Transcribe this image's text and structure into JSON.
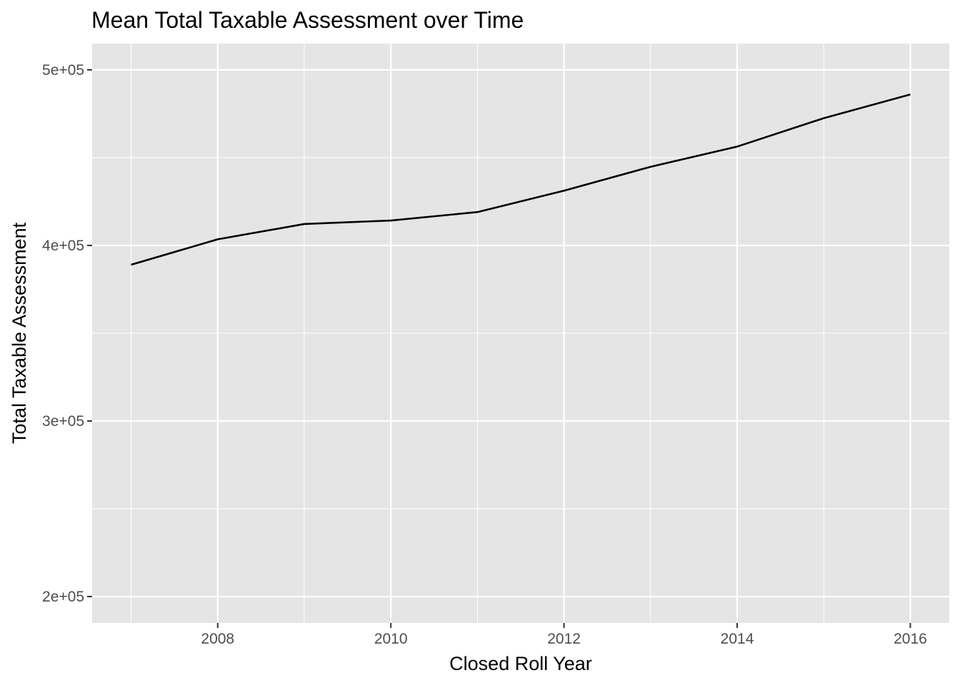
{
  "chart_data": {
    "type": "line",
    "title": "Mean Total Taxable Assessment over Time",
    "xlabel": "Closed Roll Year",
    "ylabel": "Total Taxable Assessment",
    "x": [
      2007,
      2008,
      2009,
      2010,
      2011,
      2012,
      2013,
      2014,
      2015,
      2016
    ],
    "series": [
      {
        "values": [
          389000,
          403500,
          412200,
          414200,
          419000,
          431200,
          444800,
          456300,
          472500,
          486000
        ]
      }
    ],
    "xlim": [
      2006.55,
      2016.45
    ],
    "ylim": [
      185000,
      515000
    ],
    "x_ticks": [
      2008,
      2010,
      2012,
      2014,
      2016
    ],
    "x_tick_labels": [
      "2008",
      "2010",
      "2012",
      "2014",
      "2016"
    ],
    "x_minor_ticks": [
      2007,
      2009,
      2011,
      2013,
      2015
    ],
    "y_ticks": [
      200000,
      300000,
      400000,
      500000
    ],
    "y_tick_labels": [
      "2e+05",
      "3e+05",
      "4e+05",
      "5e+05"
    ],
    "y_minor_ticks": [
      250000,
      350000,
      450000
    ],
    "grid": true,
    "colors": {
      "panel": "#e5e5e5",
      "grid": "#ffffff",
      "line": "#000000",
      "tick_text": "#4d4d4d",
      "tick_mark": "#333333"
    }
  }
}
